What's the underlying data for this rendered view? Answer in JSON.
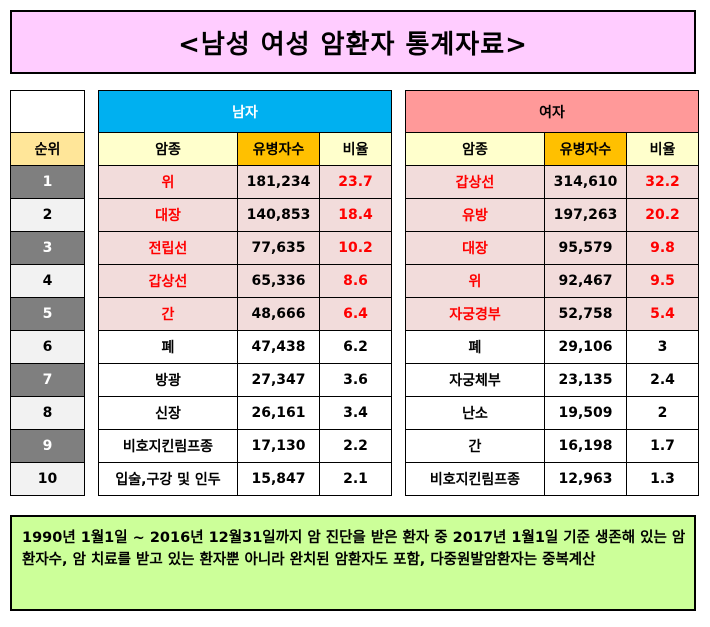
{
  "title": "<남성 여성 암환자 통계자료>",
  "rank_header": "순위",
  "ranks": [
    "1",
    "2",
    "3",
    "4",
    "5",
    "6",
    "7",
    "8",
    "9",
    "10"
  ],
  "male": {
    "title": "남자",
    "headers": {
      "type": "암종",
      "count": "유병자수",
      "ratio": "비율"
    },
    "rows": [
      {
        "type": "위",
        "count": "181,234",
        "ratio": "23.7"
      },
      {
        "type": "대장",
        "count": "140,853",
        "ratio": "18.4"
      },
      {
        "type": "전립선",
        "count": "77,635",
        "ratio": "10.2"
      },
      {
        "type": "갑상선",
        "count": "65,336",
        "ratio": "8.6"
      },
      {
        "type": "간",
        "count": "48,666",
        "ratio": "6.4"
      },
      {
        "type": "폐",
        "count": "47,438",
        "ratio": "6.2"
      },
      {
        "type": "방광",
        "count": "27,347",
        "ratio": "3.6"
      },
      {
        "type": "신장",
        "count": "26,161",
        "ratio": "3.4"
      },
      {
        "type": "비호지킨림프종",
        "count": "17,130",
        "ratio": "2.2"
      },
      {
        "type": "입술,구강 및 인두",
        "count": "15,847",
        "ratio": "2.1"
      }
    ]
  },
  "female": {
    "title": "여자",
    "headers": {
      "type": "암종",
      "count": "유병자수",
      "ratio": "비율"
    },
    "rows": [
      {
        "type": "갑상선",
        "count": "314,610",
        "ratio": "32.2"
      },
      {
        "type": "유방",
        "count": "197,263",
        "ratio": "20.2"
      },
      {
        "type": "대장",
        "count": "95,579",
        "ratio": "9.8"
      },
      {
        "type": "위",
        "count": "92,467",
        "ratio": "9.5"
      },
      {
        "type": "자궁경부",
        "count": "52,758",
        "ratio": "5.4"
      },
      {
        "type": "폐",
        "count": "29,106",
        "ratio": "3"
      },
      {
        "type": "자궁체부",
        "count": "23,135",
        "ratio": "2.4"
      },
      {
        "type": "난소",
        "count": "19,509",
        "ratio": "2"
      },
      {
        "type": "간",
        "count": "16,198",
        "ratio": "1.7"
      },
      {
        "type": "비호지킨림프종",
        "count": "12,963",
        "ratio": "1.3"
      }
    ]
  },
  "note": "1990년 1월1일 ~ 2016년 12월31일까지 암 진단을 받은 환자 중 2017년 1월1일 기준 생존해 있는 암환자수, 암 치료를 받고 있는 환자뿐 아니라 완치된 암환자도 포함, 다중원발암환자는 중복계산",
  "colors": {
    "title_bg": "#ffccff",
    "male_header": "#00b0f0",
    "female_header": "#ff9999",
    "count_header": "#ffc000",
    "header_bg": "#ffffcc",
    "top5_bg": "#f2dcdb",
    "highlight_text": "#ff0000",
    "rank_dark": "#7f7f7f",
    "note_bg": "#ccff99"
  }
}
